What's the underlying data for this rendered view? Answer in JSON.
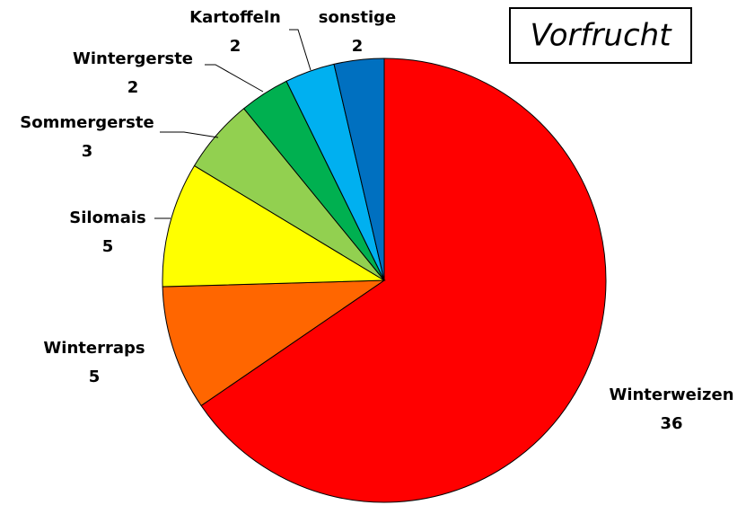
{
  "chart_data": {
    "type": "pie",
    "title": "Vorfrucht",
    "categories": [
      "Winterweizen",
      "Winterraps",
      "Silomais",
      "Sommergerste",
      "Wintergerste",
      "Kartoffeln",
      "sonstige"
    ],
    "values": [
      36,
      5,
      5,
      3,
      2,
      2,
      2
    ],
    "colors": [
      "#ff0000",
      "#ff6600",
      "#ffff00",
      "#92d050",
      "#00b050",
      "#00b0f0",
      "#0070c0"
    ]
  }
}
